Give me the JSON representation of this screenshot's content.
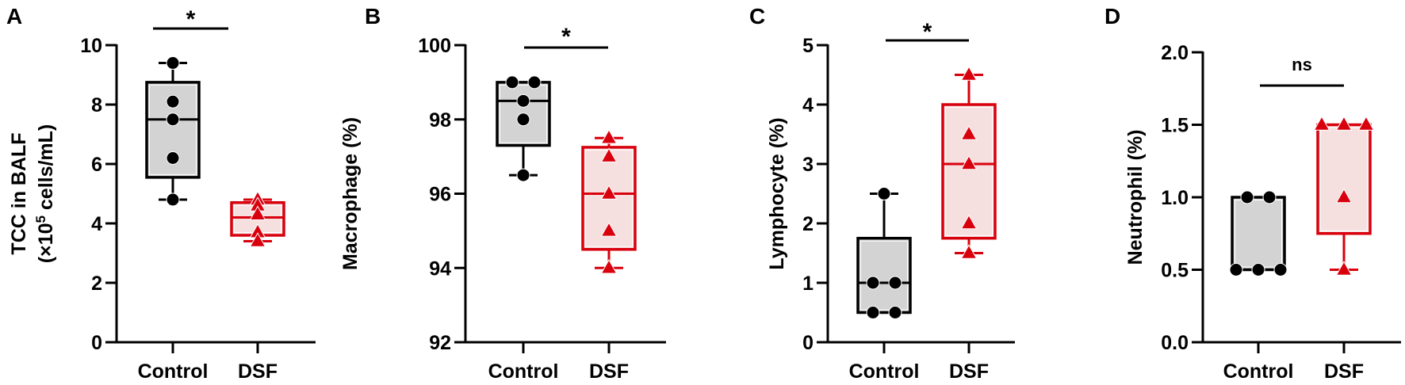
{
  "colors": {
    "control_stroke": "#000000",
    "control_fill": "#d3d3d3",
    "dsf_stroke": "#d9000d",
    "dsf_fill": "#f6dfdf"
  },
  "chart_data": [
    {
      "panel": "A",
      "type": "box",
      "title": "",
      "xlabel": "",
      "ylabel_line1": "TCC in BALF",
      "ylabel_line2_pre": "(×10",
      "ylabel_sup": "5",
      "ylabel_line2_post": " cells/mL)",
      "ylim": [
        0,
        10
      ],
      "yticks": [
        0,
        2,
        4,
        6,
        8,
        10
      ],
      "ytick_labels": [
        "0",
        "2",
        "4",
        "6",
        "8",
        "10"
      ],
      "categories": [
        "Control",
        "DSF"
      ],
      "significance": "*",
      "series": [
        {
          "name": "Control",
          "marker": "circle",
          "min": 4.8,
          "q1": 5.55,
          "median": 7.5,
          "q3": 8.75,
          "max": 9.4,
          "points": [
            9.4,
            8.1,
            7.5,
            6.2,
            4.8
          ]
        },
        {
          "name": "DSF",
          "marker": "triangle",
          "min": 3.4,
          "q1": 3.6,
          "median": 4.2,
          "q3": 4.7,
          "max": 4.8,
          "points": [
            4.8,
            4.6,
            4.3,
            3.7,
            3.4
          ]
        }
      ]
    },
    {
      "panel": "B",
      "type": "box",
      "title": "",
      "xlabel": "",
      "ylabel_line1": "Macrophage (%)",
      "ylim": [
        92,
        100
      ],
      "yticks": [
        92,
        94,
        96,
        98,
        100
      ],
      "ytick_labels": [
        "92",
        "94",
        "96",
        "98",
        "100"
      ],
      "categories": [
        "Control",
        "DSF"
      ],
      "significance": "*",
      "series": [
        {
          "name": "Control",
          "marker": "circle",
          "min": 96.5,
          "q1": 97.3,
          "median": 98.5,
          "q3": 99.0,
          "max": 99.0,
          "points": [
            99.0,
            99.0,
            98.5,
            98.0,
            96.5
          ]
        },
        {
          "name": "DSF",
          "marker": "triangle",
          "min": 94.0,
          "q1": 94.5,
          "median": 96.0,
          "q3": 97.25,
          "max": 97.5,
          "points": [
            97.5,
            97.0,
            96.0,
            95.0,
            94.0
          ]
        }
      ]
    },
    {
      "panel": "C",
      "type": "box",
      "title": "",
      "xlabel": "",
      "ylabel_line1": "Lymphocyte (%)",
      "ylim": [
        0,
        5
      ],
      "yticks": [
        0,
        1,
        2,
        3,
        4,
        5
      ],
      "ytick_labels": [
        "0",
        "1",
        "2",
        "3",
        "4",
        "5"
      ],
      "categories": [
        "Control",
        "DSF"
      ],
      "significance": "*",
      "series": [
        {
          "name": "Control",
          "marker": "circle",
          "min": 0.5,
          "q1": 0.5,
          "median": 1.0,
          "q3": 1.75,
          "max": 2.5,
          "points": [
            2.5,
            1.0,
            1.0,
            0.5,
            0.5
          ]
        },
        {
          "name": "DSF",
          "marker": "triangle",
          "min": 1.5,
          "q1": 1.75,
          "median": 3.0,
          "q3": 4.0,
          "max": 4.5,
          "points": [
            4.5,
            3.5,
            3.0,
            2.0,
            1.5
          ]
        }
      ]
    },
    {
      "panel": "D",
      "type": "box",
      "title": "",
      "xlabel": "",
      "ylabel_line1": "Neutrophil (%)",
      "ylim": [
        0,
        2
      ],
      "yticks": [
        0,
        0.5,
        1.0,
        1.5,
        2.0
      ],
      "ytick_labels": [
        "0.0",
        "0.5",
        "1.0",
        "1.5",
        "2.0"
      ],
      "categories": [
        "Control",
        "DSF"
      ],
      "significance": "ns",
      "series": [
        {
          "name": "Control",
          "marker": "circle",
          "min": 0.5,
          "q1": 0.5,
          "median": 0.5,
          "q3": 1.0,
          "max": 1.0,
          "points": [
            1.0,
            1.0,
            0.5,
            0.5,
            0.5
          ]
        },
        {
          "name": "DSF",
          "marker": "triangle",
          "min": 0.5,
          "q1": 0.75,
          "median": 1.5,
          "q3": 1.5,
          "max": 1.5,
          "points": [
            1.5,
            1.5,
            1.5,
            1.0,
            0.5
          ]
        }
      ]
    }
  ]
}
